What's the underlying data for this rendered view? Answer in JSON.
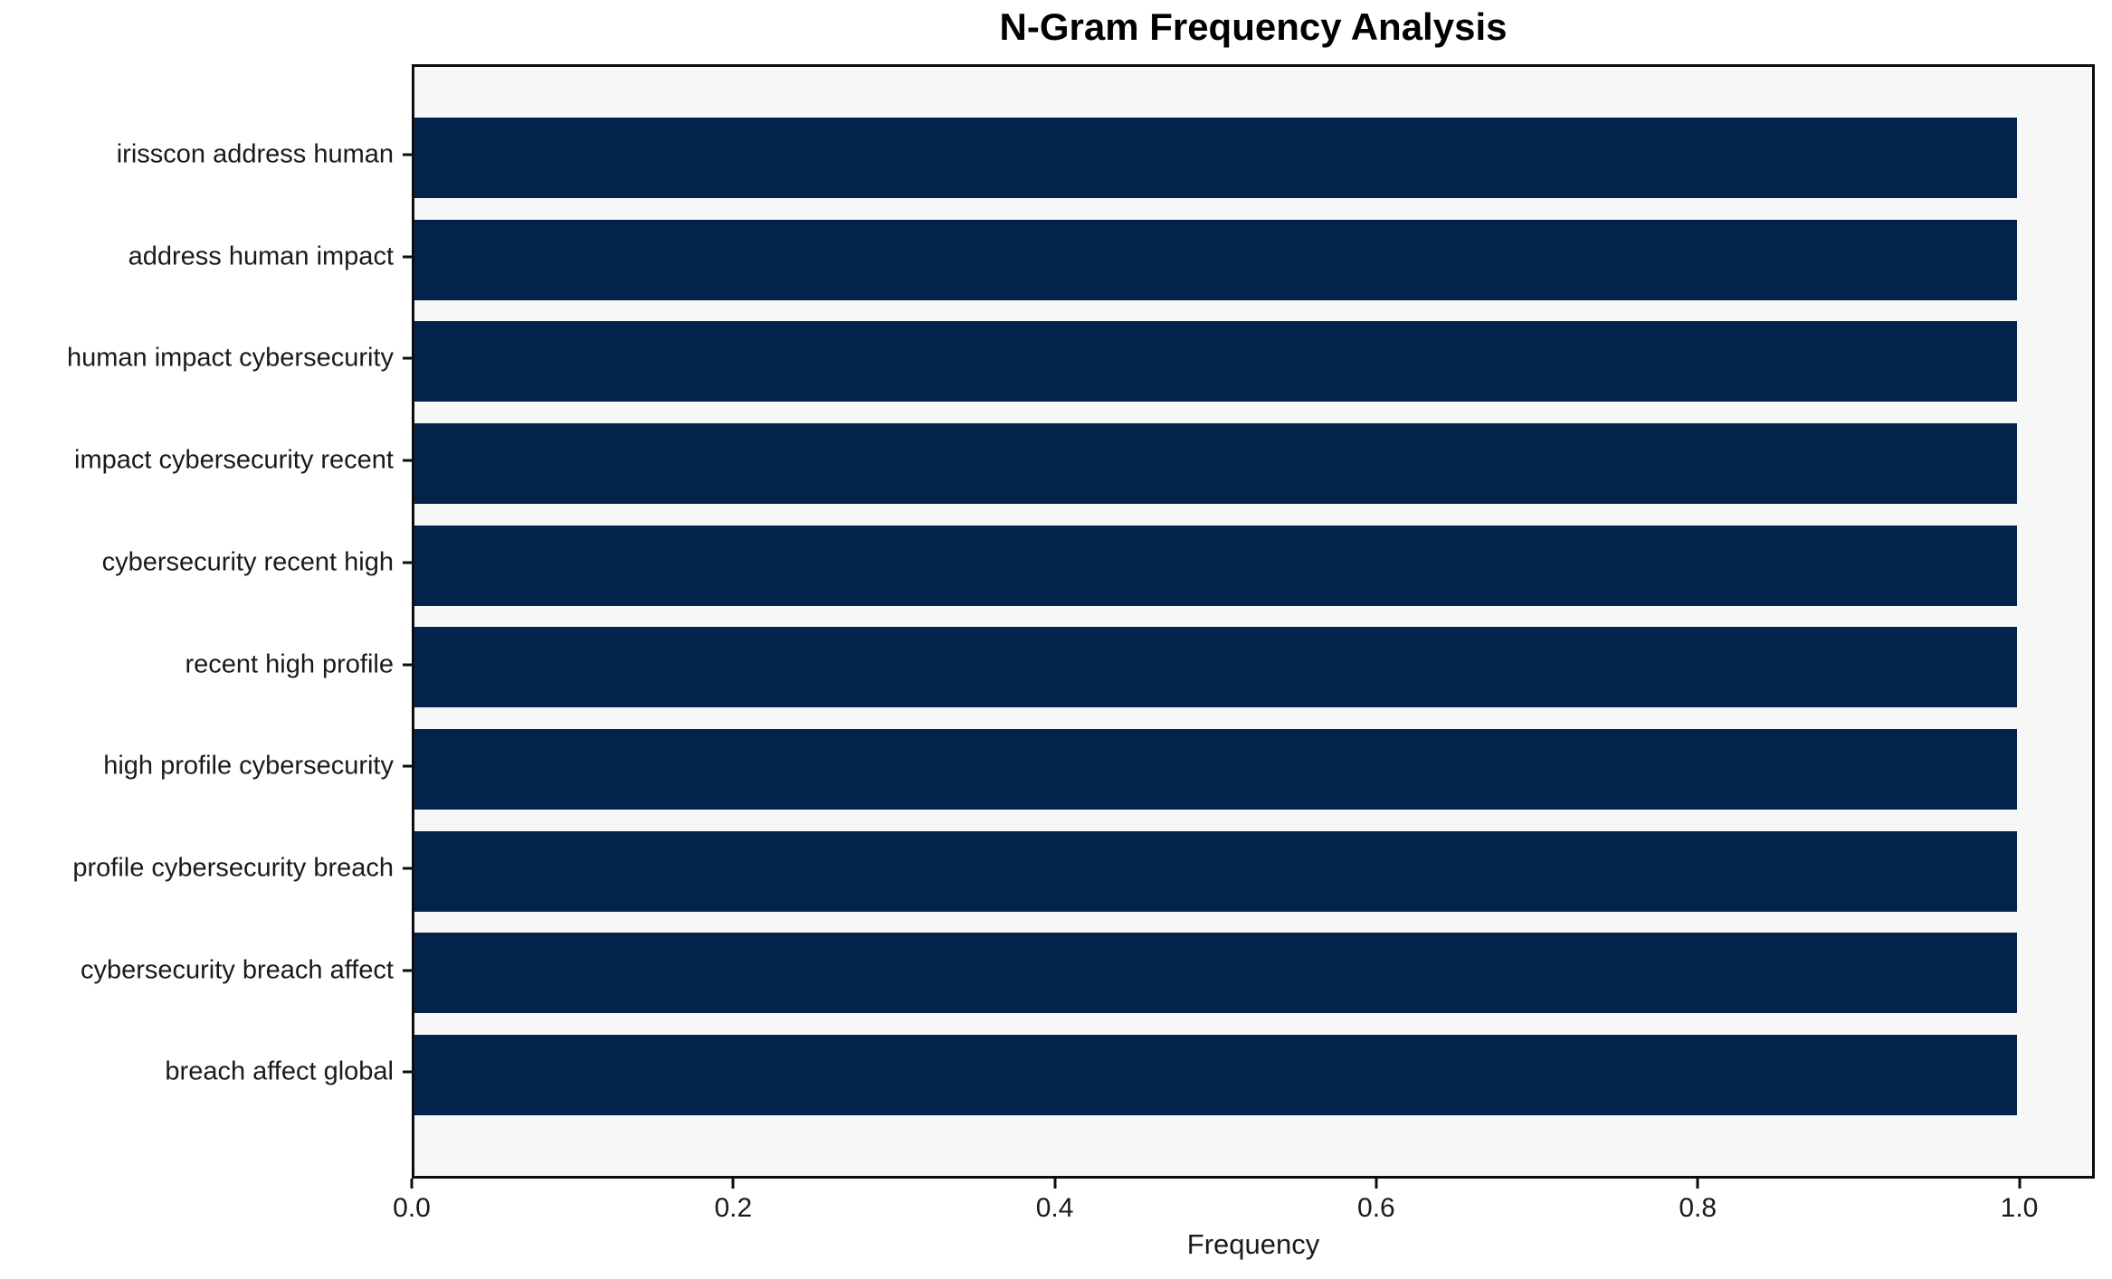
{
  "chart_data": {
    "type": "bar",
    "orientation": "horizontal",
    "title": "N-Gram Frequency Analysis",
    "xlabel": "Frequency",
    "ylabel": "",
    "categories": [
      "irisscon address human",
      "address human impact",
      "human impact cybersecurity",
      "impact cybersecurity recent",
      "cybersecurity recent high",
      "recent high profile",
      "high profile cybersecurity",
      "profile cybersecurity breach",
      "cybersecurity breach affect",
      "breach affect global"
    ],
    "values": [
      1.0,
      1.0,
      1.0,
      1.0,
      1.0,
      1.0,
      1.0,
      1.0,
      1.0,
      1.0
    ],
    "xlim": [
      0,
      1.047
    ],
    "xticks": [
      "0.0",
      "0.2",
      "0.4",
      "0.6",
      "0.8",
      "1.0"
    ],
    "xtick_values": [
      0.0,
      0.2,
      0.4,
      0.6,
      0.8,
      1.0
    ],
    "grid": false,
    "legend": "none",
    "colors": {
      "bar": "#02234c",
      "plot_background": "#f7f7f8",
      "figure_background": "#ffffff",
      "spine": "#0d0d0d",
      "text": "#1a1a1a"
    }
  }
}
